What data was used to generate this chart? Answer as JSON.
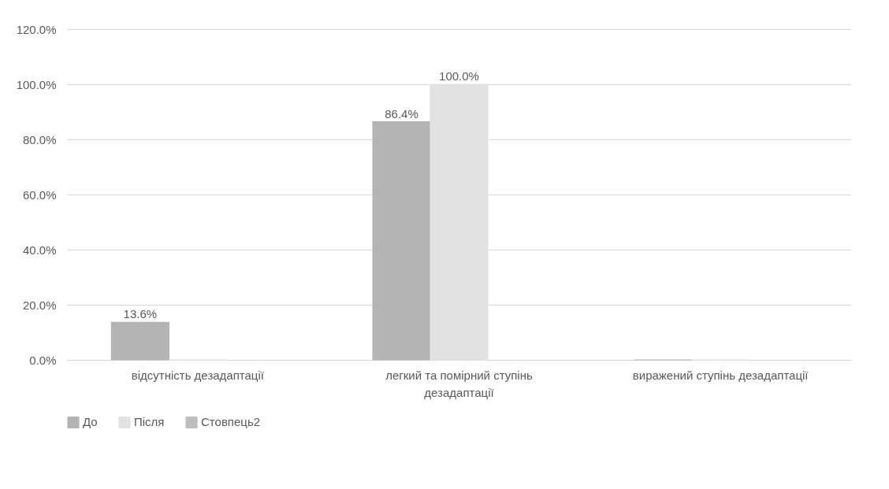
{
  "chart_data": {
    "type": "bar",
    "categories": [
      "відсутність дезадаптації",
      "легкий та помірний ступінь дезадаптації",
      "виражений ступінь дезадаптації"
    ],
    "series": [
      {
        "name": "До",
        "color": "#b4b4b4",
        "values": [
          13.6,
          86.4,
          0
        ],
        "value_labels": [
          "13.6%",
          "86.4%",
          null
        ]
      },
      {
        "name": "Після",
        "color": "#e2e2e2",
        "values": [
          0,
          100.0,
          0
        ],
        "value_labels": [
          null,
          "100.0%",
          null
        ]
      },
      {
        "name": "Стовпець2",
        "color": "#bdbdbd",
        "values": [
          null,
          null,
          null
        ]
      }
    ],
    "ylim": [
      0,
      120
    ],
    "yticks": [
      {
        "value": 0,
        "label": "0.0%"
      },
      {
        "value": 20,
        "label": "20.0%"
      },
      {
        "value": 40,
        "label": "40.0%"
      },
      {
        "value": 60,
        "label": "60.0%"
      },
      {
        "value": 80,
        "label": "80.0%"
      },
      {
        "value": 100,
        "label": "100.0%"
      },
      {
        "value": 120,
        "label": "120.0%"
      }
    ],
    "grid": "y",
    "legend": "bottom"
  }
}
